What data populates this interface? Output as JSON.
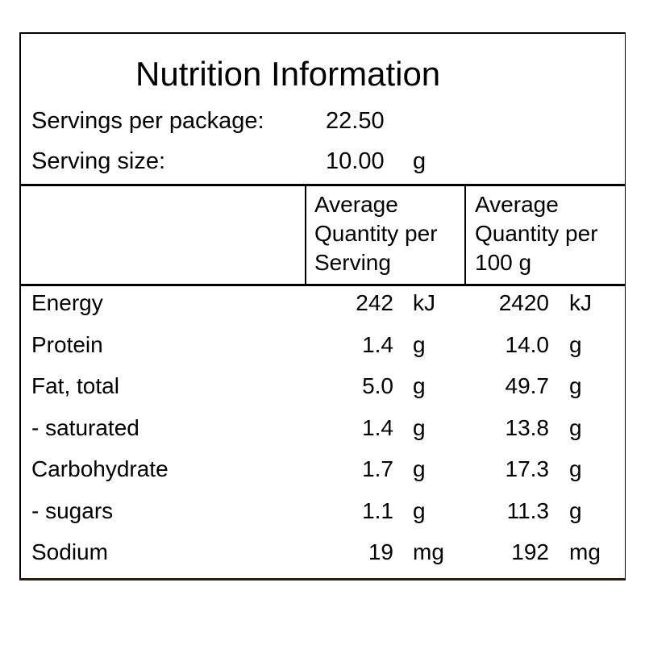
{
  "title": "Nutrition Information",
  "servings_per_package": {
    "label": "Servings per package:",
    "value": "22.50"
  },
  "serving_size": {
    "label": "Serving size:",
    "value": "10.00",
    "unit": "g"
  },
  "columns": [
    {
      "lines": [
        "Average",
        "Quantity per",
        "Serving"
      ]
    },
    {
      "lines": [
        "Average",
        "Quantity per",
        "100 g"
      ]
    }
  ],
  "rows": [
    {
      "name": "Energy",
      "per_serving": "242",
      "per_serving_unit": "kJ",
      "per_100g": "2420",
      "per_100g_unit": "kJ"
    },
    {
      "name": "Protein",
      "per_serving": "1.4",
      "per_serving_unit": "g",
      "per_100g": "14.0",
      "per_100g_unit": "g"
    },
    {
      "name": "Fat, total",
      "per_serving": "5.0",
      "per_serving_unit": "g",
      "per_100g": "49.7",
      "per_100g_unit": "g"
    },
    {
      "name": "- saturated",
      "per_serving": "1.4",
      "per_serving_unit": "g",
      "per_100g": "13.8",
      "per_100g_unit": "g"
    },
    {
      "name": "Carbohydrate",
      "per_serving": "1.7",
      "per_serving_unit": "g",
      "per_100g": "17.3",
      "per_100g_unit": "g"
    },
    {
      "name": "- sugars",
      "per_serving": "1.1",
      "per_serving_unit": "g",
      "per_100g": "11.3",
      "per_100g_unit": "g"
    },
    {
      "name": "Sodium",
      "per_serving": "19",
      "per_serving_unit": "mg",
      "per_100g": "192",
      "per_100g_unit": "mg"
    }
  ]
}
